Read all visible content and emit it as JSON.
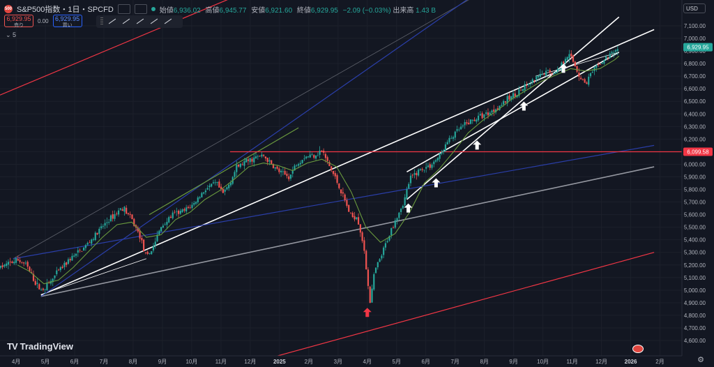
{
  "header": {
    "sym_icon_text": "500",
    "symbol_title": "S&P500指数・1日・SPCFD",
    "ohlc": [
      {
        "label": "始値",
        "value": "6,936.02"
      },
      {
        "label": "高値",
        "value": "6,945.77"
      },
      {
        "label": "安値",
        "value": "6,921.60"
      },
      {
        "label": "終値",
        "value": "6,929.95"
      }
    ],
    "change": "−2.09 (−0.03%)",
    "volume_label": "出来高",
    "volume_value": "1.43 B"
  },
  "trade": {
    "sell_price": "6,929.95",
    "sell_label": "売り",
    "spread": "0.00",
    "buy_price": "6,929.95",
    "buy_label": "買い"
  },
  "indicator_count": "5",
  "currency": "USD",
  "logo_text": "TradingView",
  "colors": {
    "background": "#131722",
    "up": "#26a69a",
    "down": "#ef5350",
    "trendline": "#ffffff",
    "channel_red": "#f23645",
    "channel_blue": "#2a3ea8",
    "channel_gray": "#9598a1",
    "ma_green": "#6a9a3e",
    "last_price_bg": "#26a69a",
    "hline_bg": "#f23645"
  },
  "chart_data": {
    "type": "candlestick",
    "title": "S&P500指数・1日・SPCFD",
    "ylim": [
      4550,
      7200
    ],
    "y_ticks": [
      4600,
      4700,
      4800,
      4900,
      5000,
      5100,
      5200,
      5300,
      5400,
      5500,
      5600,
      5700,
      5800,
      5900,
      6000,
      6100,
      6200,
      6300,
      6400,
      6500,
      6600,
      6700,
      6800,
      6900,
      7000,
      7100
    ],
    "x_ticks": [
      {
        "label": "4月",
        "x": 0.55
      },
      {
        "label": "5月",
        "x": 1.55
      },
      {
        "label": "6月",
        "x": 2.55
      },
      {
        "label": "7月",
        "x": 3.55
      },
      {
        "label": "8月",
        "x": 4.55
      },
      {
        "label": "9月",
        "x": 5.55
      },
      {
        "label": "10月",
        "x": 6.55
      },
      {
        "label": "11月",
        "x": 7.55
      },
      {
        "label": "12月",
        "x": 8.55
      },
      {
        "label": "2025",
        "x": 9.55,
        "bold": true
      },
      {
        "label": "2月",
        "x": 10.55
      },
      {
        "label": "3月",
        "x": 11.55
      },
      {
        "label": "4月",
        "x": 12.55
      },
      {
        "label": "5月",
        "x": 13.55
      },
      {
        "label": "6月",
        "x": 14.55
      },
      {
        "label": "7月",
        "x": 15.55
      },
      {
        "label": "8月",
        "x": 16.55
      },
      {
        "label": "9月",
        "x": 17.55
      },
      {
        "label": "10月",
        "x": 18.55
      },
      {
        "label": "11月",
        "x": 19.55
      },
      {
        "label": "12月",
        "x": 20.55
      },
      {
        "label": "2026",
        "x": 21.55,
        "bold": true
      },
      {
        "label": "2月",
        "x": 22.55
      }
    ],
    "xlim": [
      0,
      23.3
    ],
    "last_price": 6929.95,
    "last_price_label": "6,929.95",
    "horizontal_line": 6099.58,
    "horizontal_line_label": "6,099.58",
    "price_path": [
      [
        0.0,
        5180
      ],
      [
        0.3,
        5210
      ],
      [
        0.6,
        5240
      ],
      [
        0.9,
        5200
      ],
      [
        1.2,
        5060
      ],
      [
        1.4,
        5000
      ],
      [
        1.7,
        5060
      ],
      [
        2.0,
        5150
      ],
      [
        2.4,
        5250
      ],
      [
        2.8,
        5320
      ],
      [
        3.2,
        5420
      ],
      [
        3.6,
        5530
      ],
      [
        4.0,
        5620
      ],
      [
        4.2,
        5660
      ],
      [
        4.5,
        5560
      ],
      [
        4.8,
        5420
      ],
      [
        5.0,
        5250
      ],
      [
        5.2,
        5330
      ],
      [
        5.5,
        5500
      ],
      [
        5.9,
        5600
      ],
      [
        6.3,
        5630
      ],
      [
        6.6,
        5680
      ],
      [
        7.0,
        5800
      ],
      [
        7.4,
        5850
      ],
      [
        7.6,
        5760
      ],
      [
        7.8,
        5830
      ],
      [
        8.1,
        5980
      ],
      [
        8.4,
        6020
      ],
      [
        8.7,
        6050
      ],
      [
        9.0,
        6070
      ],
      [
        9.3,
        5990
      ],
      [
        9.6,
        5930
      ],
      [
        9.9,
        5900
      ],
      [
        10.1,
        6000
      ],
      [
        10.4,
        6060
      ],
      [
        10.8,
        6080
      ],
      [
        11.0,
        6110
      ],
      [
        11.2,
        6010
      ],
      [
        11.5,
        5870
      ],
      [
        11.8,
        5700
      ],
      [
        12.0,
        5580
      ],
      [
        12.2,
        5590
      ],
      [
        12.4,
        5380
      ],
      [
        12.55,
        5100
      ],
      [
        12.65,
        4900
      ],
      [
        12.8,
        5150
      ],
      [
        13.0,
        5250
      ],
      [
        13.2,
        5380
      ],
      [
        13.5,
        5560
      ],
      [
        13.8,
        5700
      ],
      [
        14.0,
        5880
      ],
      [
        14.3,
        5950
      ],
      [
        14.7,
        5990
      ],
      [
        15.0,
        6060
      ],
      [
        15.3,
        6180
      ],
      [
        15.7,
        6280
      ],
      [
        16.0,
        6330
      ],
      [
        16.4,
        6380
      ],
      [
        16.8,
        6420
      ],
      [
        17.2,
        6490
      ],
      [
        17.6,
        6560
      ],
      [
        18.0,
        6620
      ],
      [
        18.4,
        6690
      ],
      [
        18.7,
        6740
      ],
      [
        19.0,
        6730
      ],
      [
        19.2,
        6800
      ],
      [
        19.4,
        6880
      ],
      [
        19.6,
        6810
      ],
      [
        19.8,
        6700
      ],
      [
        20.0,
        6640
      ],
      [
        20.2,
        6720
      ],
      [
        20.5,
        6800
      ],
      [
        20.8,
        6860
      ],
      [
        21.0,
        6900
      ],
      [
        21.15,
        6929.95
      ]
    ],
    "ma_path": [
      [
        0.6,
        5200
      ],
      [
        1.0,
        5150
      ],
      [
        1.5,
        5050
      ],
      [
        2.0,
        5080
      ],
      [
        2.5,
        5180
      ],
      [
        3.0,
        5300
      ],
      [
        3.5,
        5420
      ],
      [
        4.0,
        5520
      ],
      [
        4.5,
        5540
      ],
      [
        5.0,
        5420
      ],
      [
        5.5,
        5440
      ],
      [
        6.0,
        5560
      ],
      [
        6.5,
        5620
      ],
      [
        7.0,
        5720
      ],
      [
        7.5,
        5790
      ],
      [
        8.0,
        5880
      ],
      [
        8.5,
        5980
      ],
      [
        9.0,
        6010
      ],
      [
        9.5,
        5990
      ],
      [
        10.0,
        5950
      ],
      [
        10.5,
        6010
      ],
      [
        11.0,
        6040
      ],
      [
        11.5,
        5980
      ],
      [
        12.0,
        5780
      ],
      [
        12.5,
        5500
      ],
      [
        13.0,
        5380
      ],
      [
        13.5,
        5450
      ],
      [
        14.0,
        5620
      ],
      [
        14.5,
        5850
      ],
      [
        15.0,
        5960
      ],
      [
        15.5,
        6100
      ],
      [
        16.0,
        6250
      ],
      [
        16.5,
        6350
      ],
      [
        17.0,
        6430
      ],
      [
        17.5,
        6520
      ],
      [
        18.0,
        6590
      ],
      [
        18.5,
        6660
      ],
      [
        19.0,
        6710
      ],
      [
        19.5,
        6760
      ],
      [
        20.0,
        6740
      ],
      [
        20.5,
        6760
      ],
      [
        21.0,
        6830
      ],
      [
        21.15,
        6860
      ]
    ],
    "lines": [
      {
        "kind": "white",
        "from": [
          1.4,
          4960
        ],
        "to": [
          22.35,
          7070
        ]
      },
      {
        "kind": "white",
        "from": [
          1.4,
          4965
        ],
        "to": [
          5.0,
          5250
        ],
        "thin": true
      },
      {
        "kind": "white",
        "from": [
          13.9,
          5720
        ],
        "to": [
          21.15,
          7170
        ]
      },
      {
        "kind": "white",
        "from": [
          13.9,
          5940
        ],
        "to": [
          21.15,
          6890
        ]
      },
      {
        "kind": "white",
        "from": [
          18.3,
          6700
        ],
        "to": [
          21.15,
          6890
        ],
        "thin": true
      },
      {
        "kind": "gray",
        "from": [
          1.4,
          4950
        ],
        "to": [
          22.35,
          5980
        ]
      },
      {
        "kind": "gray",
        "from": [
          0.45,
          5250
        ],
        "to": [
          19.9,
          7820
        ],
        "thin": true
      },
      {
        "kind": "blue",
        "from": [
          0.45,
          5250
        ],
        "to": [
          22.35,
          6150
        ]
      },
      {
        "kind": "blue",
        "from": [
          1.4,
          4950
        ],
        "to": [
          19.0,
          7800
        ]
      },
      {
        "kind": "red",
        "from": [
          0.0,
          6550
        ],
        "to": [
          11.8,
          7700
        ]
      },
      {
        "kind": "red",
        "from": [
          6.7,
          4300
        ],
        "to": [
          22.35,
          5300
        ]
      },
      {
        "kind": "green",
        "from": [
          5.1,
          5600
        ],
        "to": [
          10.2,
          6290
        ]
      }
    ],
    "arrows": [
      {
        "x": 12.55,
        "y": 4820,
        "color": "red"
      },
      {
        "x": 13.95,
        "y": 5650,
        "color": "white"
      },
      {
        "x": 14.9,
        "y": 5850,
        "color": "white"
      },
      {
        "x": 16.3,
        "y": 6150,
        "color": "white"
      },
      {
        "x": 17.9,
        "y": 6460,
        "color": "white"
      },
      {
        "x": 19.25,
        "y": 6760,
        "color": "white"
      }
    ]
  }
}
